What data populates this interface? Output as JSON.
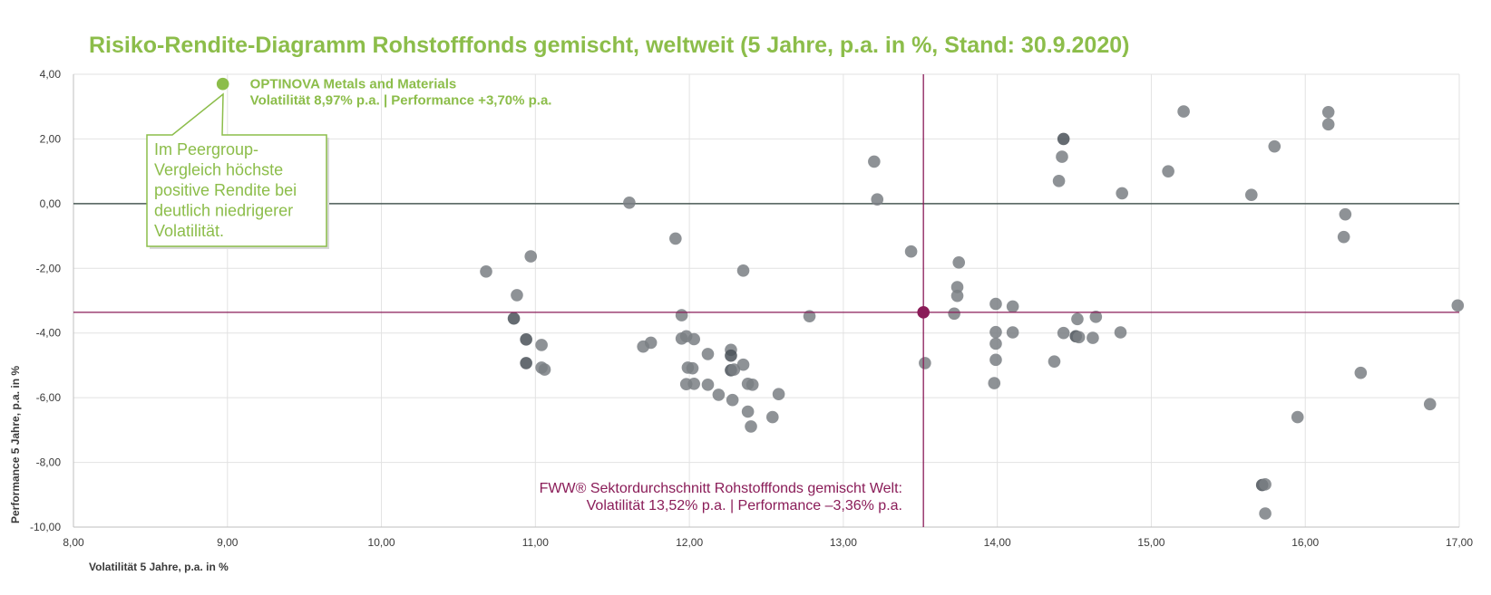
{
  "colors": {
    "highlight": "#8cbd4a",
    "average": "#8a1c58",
    "point": "#7a7f84",
    "point_dark": "#4a5158",
    "grid": "#e2e2e2",
    "zero_line": "#4a5a56"
  },
  "chart_data": {
    "type": "scatter",
    "title": "Risiko-Rendite-Diagramm Rohstofffonds gemischt, weltweit (5 Jahre, p.a. in %, Stand: 30.9.2020)",
    "xlabel": "Volatilität 5 Jahre, p.a. in %",
    "ylabel": "Performance 5 Jahre, p.a. in %",
    "xlim": [
      8,
      17
    ],
    "ylim": [
      -10,
      4
    ],
    "x_ticks": [
      "8,00",
      "9,00",
      "10,00",
      "11,00",
      "12,00",
      "13,00",
      "14,00",
      "15,00",
      "16,00",
      "17,00"
    ],
    "y_ticks": [
      "4,00",
      "2,00",
      "0,00",
      "-2,00",
      "-4,00",
      "-6,00",
      "-8,00",
      "-10,00"
    ],
    "grid": true,
    "highlight": {
      "x": 8.97,
      "y": 3.7,
      "name": "OPTINOVA Metals and Materials",
      "detail": "Volatilität 8,97% p.a. | Performance +3,70% p.a."
    },
    "callout_lines": [
      "Im Peergroup-",
      "Vergleich höchste",
      "positive Rendite bei",
      "deutlich niedrigerer",
      "Volatilität."
    ],
    "average": {
      "x": 13.52,
      "y": -3.36,
      "line1": "FWW® Sektordurchschnitt Rohstofffonds gemischt Welt:",
      "line2": "Volatilität 13,52% p.a. | Performance –3,36% p.a."
    },
    "points": [
      [
        10.68,
        -2.1
      ],
      [
        10.86,
        -3.55
      ],
      [
        10.88,
        -2.83
      ],
      [
        10.94,
        -4.2
      ],
      [
        10.94,
        -4.93
      ],
      [
        10.97,
        -1.63
      ],
      [
        11.04,
        -4.37
      ],
      [
        11.04,
        -5.07
      ],
      [
        11.06,
        -5.13
      ],
      [
        11.61,
        0.03
      ],
      [
        11.7,
        -4.42
      ],
      [
        11.75,
        -4.3
      ],
      [
        11.91,
        -1.08
      ],
      [
        11.95,
        -3.45
      ],
      [
        11.95,
        -4.17
      ],
      [
        11.98,
        -4.1
      ],
      [
        11.98,
        -5.58
      ],
      [
        11.99,
        -5.07
      ],
      [
        12.02,
        -5.09
      ],
      [
        12.03,
        -4.19
      ],
      [
        12.03,
        -5.57
      ],
      [
        12.12,
        -4.65
      ],
      [
        12.12,
        -5.6
      ],
      [
        12.19,
        -5.91
      ],
      [
        12.27,
        -4.52
      ],
      [
        12.27,
        -4.7
      ],
      [
        12.27,
        -5.15
      ],
      [
        12.28,
        -6.07
      ],
      [
        12.29,
        -5.13
      ],
      [
        12.35,
        -2.07
      ],
      [
        12.35,
        -4.98
      ],
      [
        12.38,
        -5.57
      ],
      [
        12.38,
        -6.43
      ],
      [
        12.4,
        -6.89
      ],
      [
        12.41,
        -5.6
      ],
      [
        12.54,
        -6.6
      ],
      [
        12.58,
        -5.89
      ],
      [
        12.78,
        -3.48
      ],
      [
        13.2,
        1.3
      ],
      [
        13.22,
        0.13
      ],
      [
        13.44,
        -1.48
      ],
      [
        13.53,
        -4.93
      ],
      [
        13.72,
        -3.4
      ],
      [
        13.74,
        -2.85
      ],
      [
        13.74,
        -2.58
      ],
      [
        13.75,
        -1.82
      ],
      [
        13.98,
        -5.55
      ],
      [
        13.99,
        -3.1
      ],
      [
        13.99,
        -4.83
      ],
      [
        13.99,
        -3.97
      ],
      [
        13.99,
        -4.33
      ],
      [
        14.1,
        -3.18
      ],
      [
        14.1,
        -3.98
      ],
      [
        14.37,
        -4.88
      ],
      [
        14.4,
        0.7
      ],
      [
        14.42,
        1.45
      ],
      [
        14.43,
        2.0
      ],
      [
        14.43,
        -4.0
      ],
      [
        14.51,
        -4.1
      ],
      [
        14.52,
        -3.57
      ],
      [
        14.53,
        -4.13
      ],
      [
        14.62,
        -4.15
      ],
      [
        14.64,
        -3.5
      ],
      [
        14.8,
        -3.98
      ],
      [
        14.81,
        0.32
      ],
      [
        15.11,
        1.0
      ],
      [
        15.21,
        2.85
      ],
      [
        15.65,
        0.27
      ],
      [
        15.72,
        -8.7
      ],
      [
        15.74,
        -8.68
      ],
      [
        15.74,
        -9.58
      ],
      [
        15.8,
        1.77
      ],
      [
        15.95,
        -6.6
      ],
      [
        16.15,
        2.83
      ],
      [
        16.15,
        2.45
      ],
      [
        16.25,
        -1.03
      ],
      [
        16.26,
        -0.33
      ],
      [
        16.36,
        -5.23
      ],
      [
        16.81,
        -6.2
      ],
      [
        16.99,
        -3.15
      ]
    ],
    "dark_points": [
      [
        10.86,
        -3.55
      ],
      [
        10.94,
        -4.2
      ],
      [
        10.94,
        -4.93
      ],
      [
        12.27,
        -4.7
      ],
      [
        12.27,
        -5.15
      ],
      [
        14.43,
        2.0
      ],
      [
        14.51,
        -4.1
      ],
      [
        15.72,
        -8.7
      ]
    ]
  }
}
